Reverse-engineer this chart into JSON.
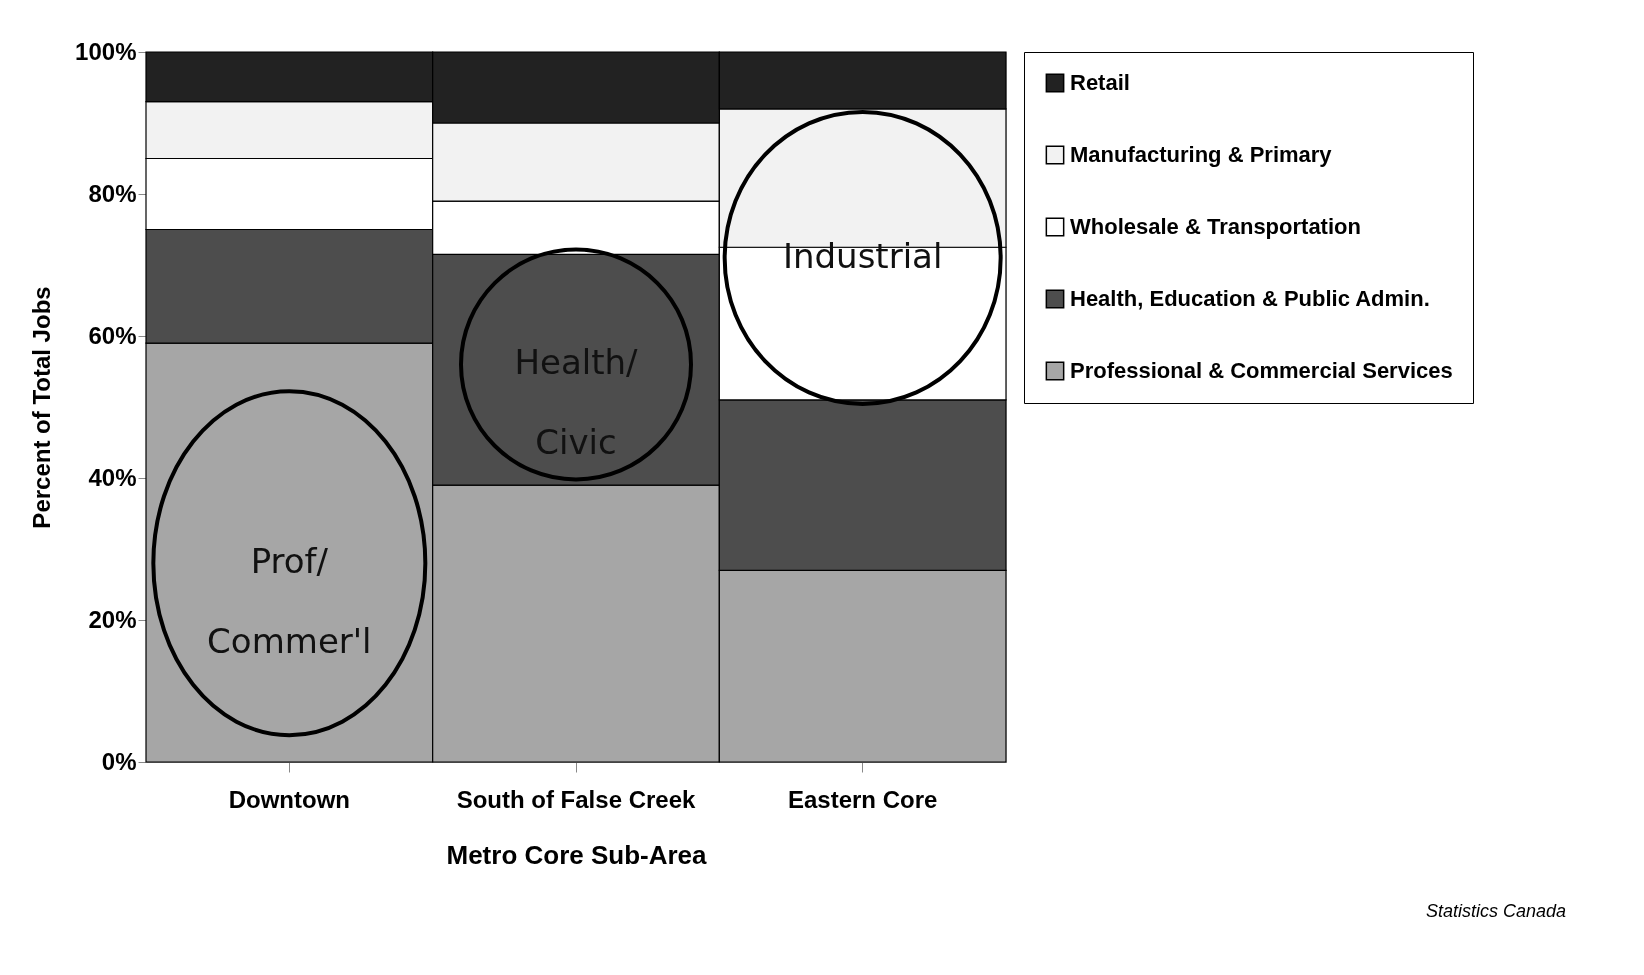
{
  "chart_data": {
    "type": "bar",
    "stacked": true,
    "xlabel": "Metro Core Sub-Area",
    "ylabel": "Percent of Total Jobs",
    "categories": [
      "Downtown",
      "South of False Creek",
      "Eastern Core"
    ],
    "series": [
      {
        "name": "Professional & Commercial Services",
        "color": "#a6a6a6",
        "values": [
          59,
          39,
          27
        ]
      },
      {
        "name": "Health, Education & Public Admin.",
        "color": "#4d4d4d",
        "values": [
          16,
          32.5,
          24
        ]
      },
      {
        "name": "Wholesale & Transportation",
        "color": "#ffffff",
        "values": [
          10,
          7.5,
          21.5
        ]
      },
      {
        "name": "Manufacturing & Primary",
        "color": "#f2f2f2",
        "values": [
          8,
          11,
          19.5
        ]
      },
      {
        "name": "Retail",
        "color": "#222222",
        "values": [
          7,
          10,
          8
        ]
      }
    ],
    "ylim": [
      0,
      100
    ],
    "yticks": [
      {
        "value": 0,
        "label": "0%"
      },
      {
        "value": 20,
        "label": "20%"
      },
      {
        "value": 40,
        "label": "40%"
      },
      {
        "value": 60,
        "label": "60%"
      },
      {
        "value": 80,
        "label": "80%"
      },
      {
        "value": 100,
        "label": "100%"
      }
    ],
    "legend": "right",
    "annotations": [
      "Prof/ Commer'l",
      "Health/ Civic",
      "Industrial",
      "Statistics Canada"
    ]
  }
}
